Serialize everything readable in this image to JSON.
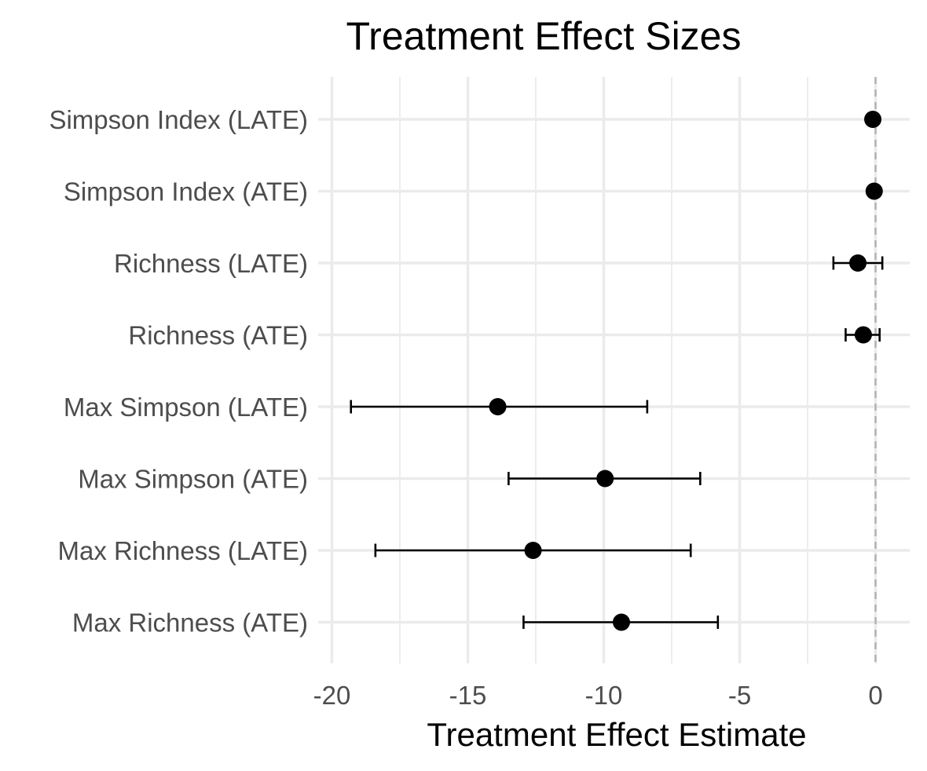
{
  "chart_data": {
    "type": "scatter",
    "title": "Treatment Effect Sizes",
    "xlabel": "Treatment Effect Estimate",
    "ylabel": "",
    "xlim": [
      -20.0,
      1.2
    ],
    "x_ticks": [
      -20,
      -15,
      -10,
      -5,
      0
    ],
    "x_tick_labels": [
      "-20",
      "-15",
      "-10",
      "-5",
      "0"
    ],
    "categories": [
      "Simpson Index (LATE)",
      "Simpson Index (ATE)",
      "Richness (LATE)",
      "Richness (ATE)",
      "Max Simpson (LATE)",
      "Max Simpson (ATE)",
      "Max Richness (LATE)",
      "Max Richness (ATE)"
    ],
    "estimates": [
      -0.1,
      -0.05,
      -0.65,
      -0.45,
      -13.9,
      -9.95,
      -12.6,
      -9.35
    ],
    "ci_lower": [
      -0.1,
      -0.05,
      -1.55,
      -1.1,
      -19.3,
      -13.5,
      -18.4,
      -12.95
    ],
    "ci_upper": [
      -0.1,
      -0.05,
      0.25,
      0.15,
      -8.4,
      -6.45,
      -6.8,
      -5.8
    ],
    "reference_line": 0,
    "grid": true,
    "colors": {
      "point": "#000000",
      "grid": "#ebebeb",
      "reference_line": "#b3b3b3",
      "tick_label": "#4d4d4d"
    }
  }
}
